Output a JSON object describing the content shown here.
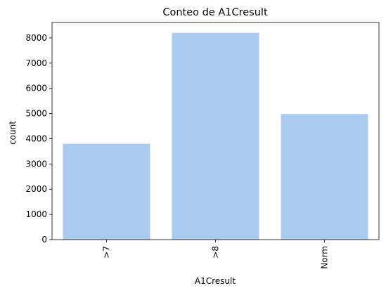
{
  "chart_data": {
    "type": "bar",
    "title": "Conteo de A1Cresult",
    "xlabel": "A1Cresult",
    "ylabel": "count",
    "categories": [
      ">7",
      ">8",
      "Norm"
    ],
    "values": [
      3800,
      8200,
      4980
    ],
    "ylim": [
      0,
      8610
    ],
    "yticks": [
      0,
      1000,
      2000,
      3000,
      4000,
      5000,
      6000,
      7000,
      8000
    ],
    "bar_color": "#abcaef",
    "grid": false
  }
}
